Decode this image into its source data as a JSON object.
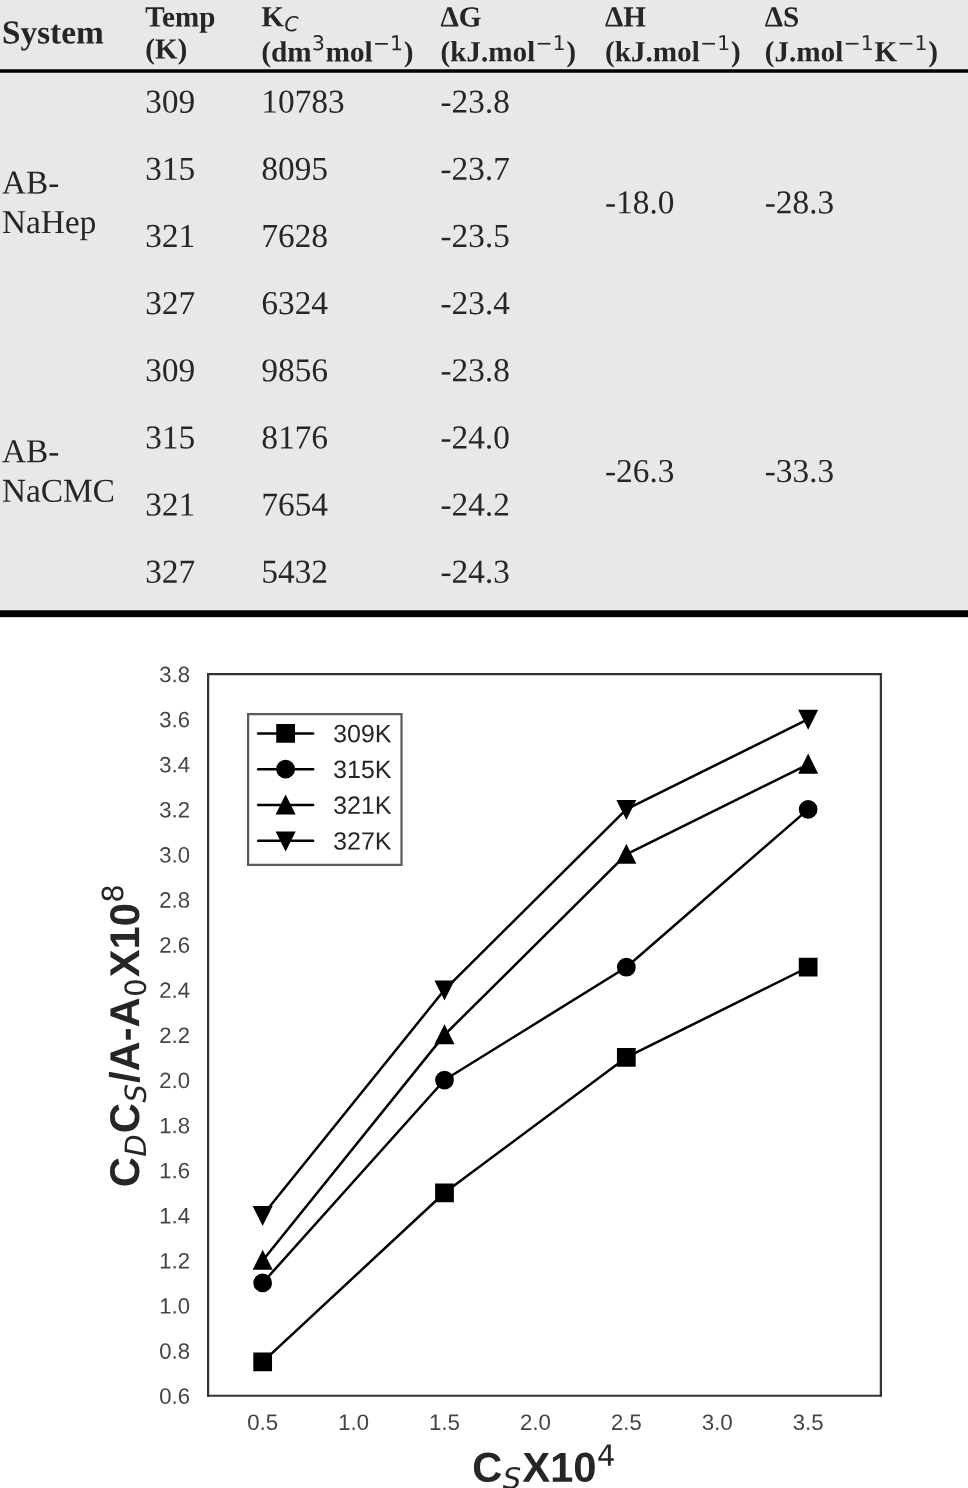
{
  "chart_data": [
    {
      "type": "other",
      "categories": [
        "System",
        "Temp\n(K)",
        "K$_{C}$\n(dm$^{3}$mol$^{−1}$)",
        "ΔG\n(kJ.mol$^{−1}$)",
        "ΔH\n(kJ.mol$^{−1}$)",
        "ΔS\n(J.mol$^{−1}$K$^{−1}$)"
      ],
      "cell_labels": [
        [
          "AB-\nNaHep",
          "309",
          "10783",
          "-23.8",
          "-18.0",
          "-28.3"
        ],
        [
          null,
          "315",
          "8095",
          "-23.7",
          null,
          null
        ],
        [
          null,
          "321",
          "7628",
          "-23.5",
          null,
          null
        ],
        [
          null,
          "327",
          "6324",
          "-23.4",
          null,
          null
        ],
        [
          "AB-\nNaCMC",
          "309",
          "9856",
          "-23.8",
          "-26.3",
          "-33.3"
        ],
        [
          null,
          "315",
          "8176",
          "-24.0",
          null,
          null
        ],
        [
          null,
          "321",
          "7654",
          "-24.2",
          null,
          null
        ],
        [
          null,
          "327",
          "5432",
          "-24.3",
          null,
          null
        ]
      ]
    },
    {
      "type": "line",
      "x": [
        0.5,
        1.5,
        2.5,
        3.5
      ],
      "xlabel": "C$_{S}$X10$^{4}$",
      "ylabel": "C$_{D}$C$_{S}$/A-A$_{0}$X10$^{8}$",
      "xlim": [
        0.2,
        3.9
      ],
      "xticks": [
        0.5,
        {
          "value": 1,
          "label": "1.0"
        },
        1.5,
        {
          "value": 2,
          "label": "2.0"
        },
        2.5,
        {
          "value": 3,
          "label": "3.0"
        },
        3.5
      ],
      "ylim": [
        0.6,
        3.8
      ],
      "yticks": [
        0.6,
        0.8,
        {
          "value": 1,
          "label": "1.0"
        },
        1.2,
        1.4,
        1.6,
        1.8,
        {
          "value": 2,
          "label": "2.0"
        },
        2.2,
        2.4,
        2.6,
        2.8,
        {
          "value": 3,
          "label": "3.0"
        },
        3.2,
        3.4,
        3.6,
        3.8
      ],
      "legend": "top left",
      "grid": false,
      "line_style": "solid",
      "series": [
        {
          "name": "309K",
          "color": "#000000",
          "marker": "square",
          "values": [
            0.75,
            1.5,
            2.1,
            2.5
          ]
        },
        {
          "name": "315K",
          "color": "#000000",
          "marker": "circle",
          "values": [
            1.1,
            2.0,
            2.5,
            3.2
          ]
        },
        {
          "name": "321K",
          "color": "#000000",
          "marker": "triangle",
          "values": [
            1.2,
            2.2,
            3.0,
            3.4
          ]
        },
        {
          "name": "327K",
          "color": "#000000",
          "marker": "triangle_down",
          "values": [
            1.4,
            2.4,
            3.2,
            3.6
          ]
        }
      ]
    }
  ]
}
